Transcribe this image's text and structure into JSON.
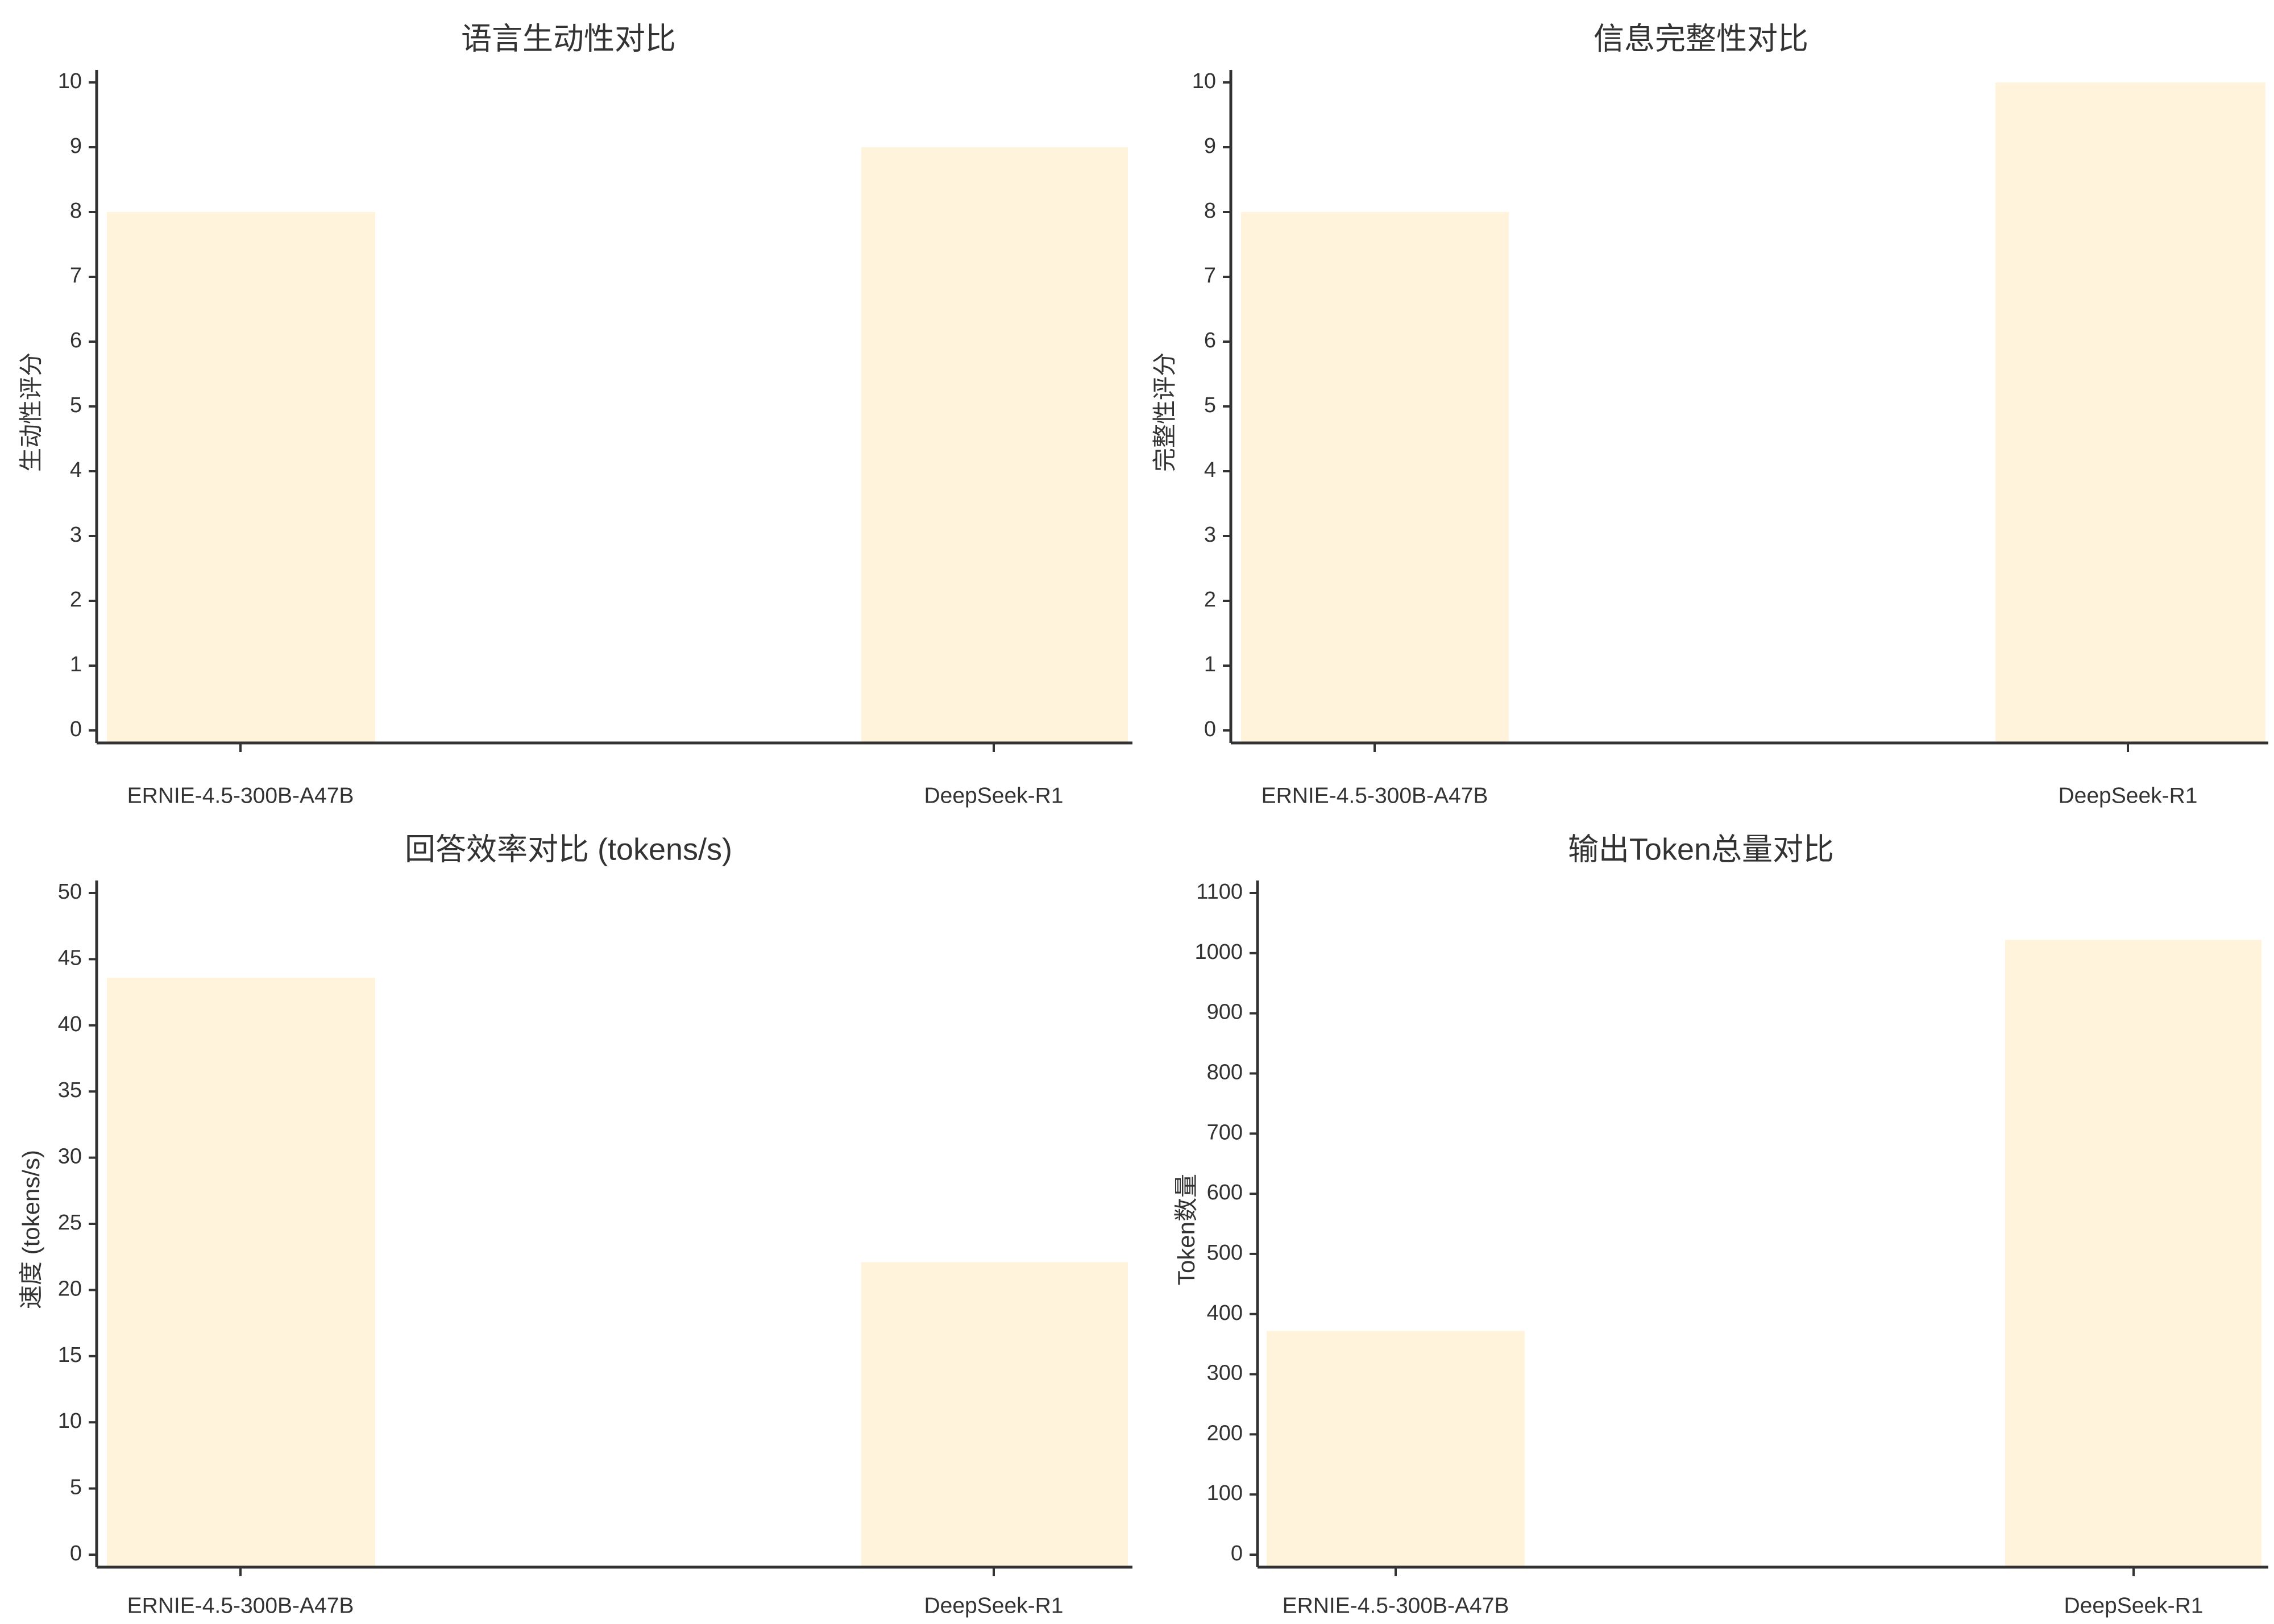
{
  "colors": {
    "bar": "#fff3dc",
    "axis": "#333333",
    "text": "#333333",
    "background": "#ffffff"
  },
  "chart_data": [
    {
      "type": "bar",
      "title": "语言生动性对比",
      "xlabel": "",
      "ylabel": "生动性评分",
      "categories": [
        "ERNIE-4.5-300B-A47B",
        "DeepSeek-R1"
      ],
      "values": [
        8,
        9
      ],
      "ylim": [
        0,
        10
      ],
      "yticks": [
        0,
        1,
        2,
        3,
        4,
        5,
        6,
        7,
        8,
        9,
        10
      ],
      "grid": false,
      "legend": "none"
    },
    {
      "type": "bar",
      "title": "信息完整性对比",
      "xlabel": "",
      "ylabel": "完整性评分",
      "categories": [
        "ERNIE-4.5-300B-A47B",
        "DeepSeek-R1"
      ],
      "values": [
        8,
        10
      ],
      "ylim": [
        0,
        10
      ],
      "yticks": [
        0,
        1,
        2,
        3,
        4,
        5,
        6,
        7,
        8,
        9,
        10
      ],
      "grid": false,
      "legend": "none"
    },
    {
      "type": "bar",
      "title": "回答效率对比 (tokens/s)",
      "xlabel": "",
      "ylabel": "速度 (tokens/s)",
      "categories": [
        "ERNIE-4.5-300B-A47B",
        "DeepSeek-R1"
      ],
      "values": [
        43.6,
        22.1
      ],
      "ylim": [
        0,
        50
      ],
      "yticks": [
        0,
        5,
        10,
        15,
        20,
        25,
        30,
        35,
        40,
        45,
        50
      ],
      "grid": false,
      "legend": "none"
    },
    {
      "type": "bar",
      "title": "输出Token总量对比",
      "xlabel": "",
      "ylabel": "Token数量",
      "categories": [
        "ERNIE-4.5-300B-A47B",
        "DeepSeek-R1"
      ],
      "values": [
        372,
        1022
      ],
      "ylim": [
        0,
        1100
      ],
      "yticks": [
        0,
        100,
        200,
        300,
        400,
        500,
        600,
        700,
        800,
        900,
        1000,
        1100
      ],
      "grid": false,
      "legend": "none"
    }
  ]
}
